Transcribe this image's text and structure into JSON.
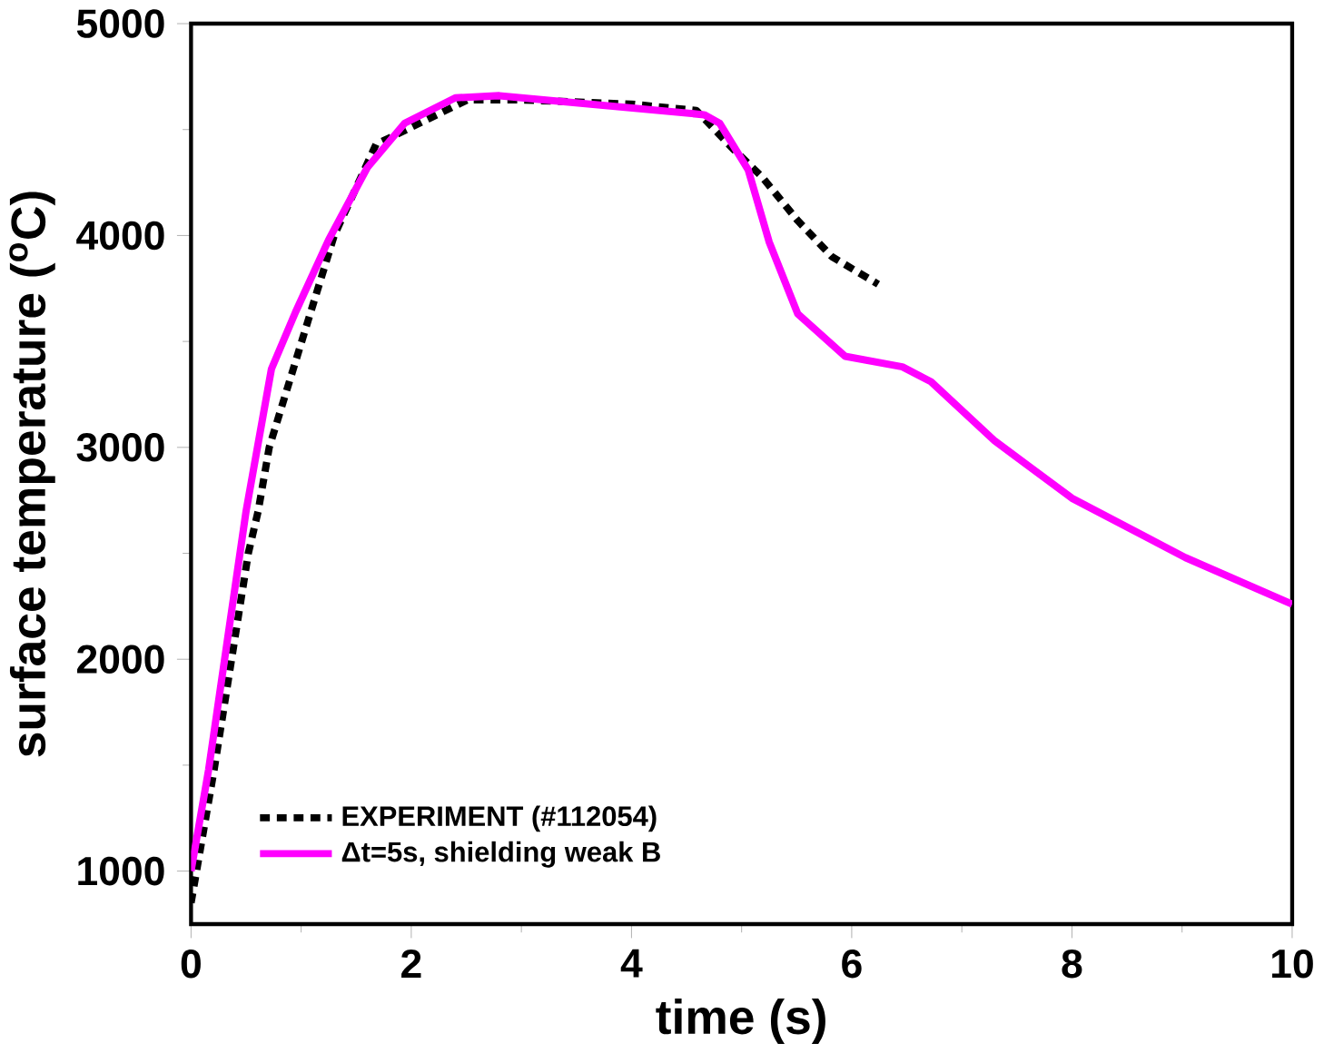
{
  "chart_data": {
    "type": "line",
    "xlabel": "time (s)",
    "ylabel": "surface temperature ($^{o}$C)",
    "xlim": [
      0,
      10
    ],
    "ylim": [
      750,
      5000
    ],
    "xticks": [
      0,
      2,
      4,
      6,
      8,
      10
    ],
    "yticks": [
      1000,
      2000,
      3000,
      4000,
      5000
    ],
    "grid": false,
    "legend": "bottom left",
    "marker": "none",
    "series": [
      {
        "name": "EXPERIMENT (#112054)",
        "color": "#000000",
        "line_style": "dotted",
        "x": [
          0,
          0.21,
          0.52,
          0.61,
          0.71,
          1.3,
          1.68,
          2.51,
          3.0,
          4.0,
          4.59,
          4.92,
          5.18,
          5.51,
          5.82,
          6.24
        ],
        "values": [
          850,
          1480,
          2500,
          2700,
          3000,
          4000,
          4430,
          4640,
          4640,
          4620,
          4590,
          4410,
          4280,
          4070,
          3900,
          3770
        ]
      },
      {
        "name": "Δt=5s, shielding weak B",
        "color": "#ff00ff",
        "line_style": "solid",
        "x": [
          0,
          0.16,
          0.5,
          0.73,
          0.95,
          1.25,
          1.6,
          1.94,
          2.4,
          2.8,
          4.66,
          4.8,
          5.06,
          5.25,
          5.51,
          5.94,
          6.46,
          6.72,
          7.3,
          8.0,
          9.03,
          10
        ],
        "values": [
          1000,
          1480,
          2700,
          3370,
          3640,
          3980,
          4320,
          4530,
          4650,
          4660,
          4570,
          4530,
          4310,
          3970,
          3630,
          3430,
          3380,
          3310,
          3030,
          2760,
          2480,
          2260
        ]
      }
    ]
  }
}
